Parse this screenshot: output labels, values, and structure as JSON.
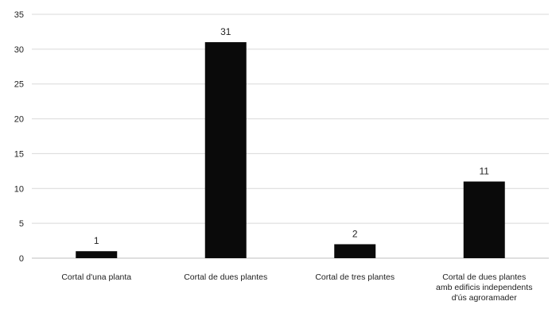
{
  "chart_data": {
    "type": "bar",
    "title": "",
    "xlabel": "",
    "ylabel": "",
    "categories": [
      [
        "Cortal d'una planta"
      ],
      [
        "Cortal de dues plantes"
      ],
      [
        "Cortal de tres plantes"
      ],
      [
        "Cortal de dues plantes",
        "amb edificis independents",
        "d'ús agroramader"
      ]
    ],
    "values": [
      1,
      31,
      2,
      11
    ],
    "ylim": [
      0,
      35
    ],
    "yticks": [
      0,
      5,
      10,
      15,
      20,
      25,
      30,
      35
    ],
    "grid": true,
    "legend": "none",
    "bar_color": "#0a0a0a",
    "data_labels": true
  }
}
